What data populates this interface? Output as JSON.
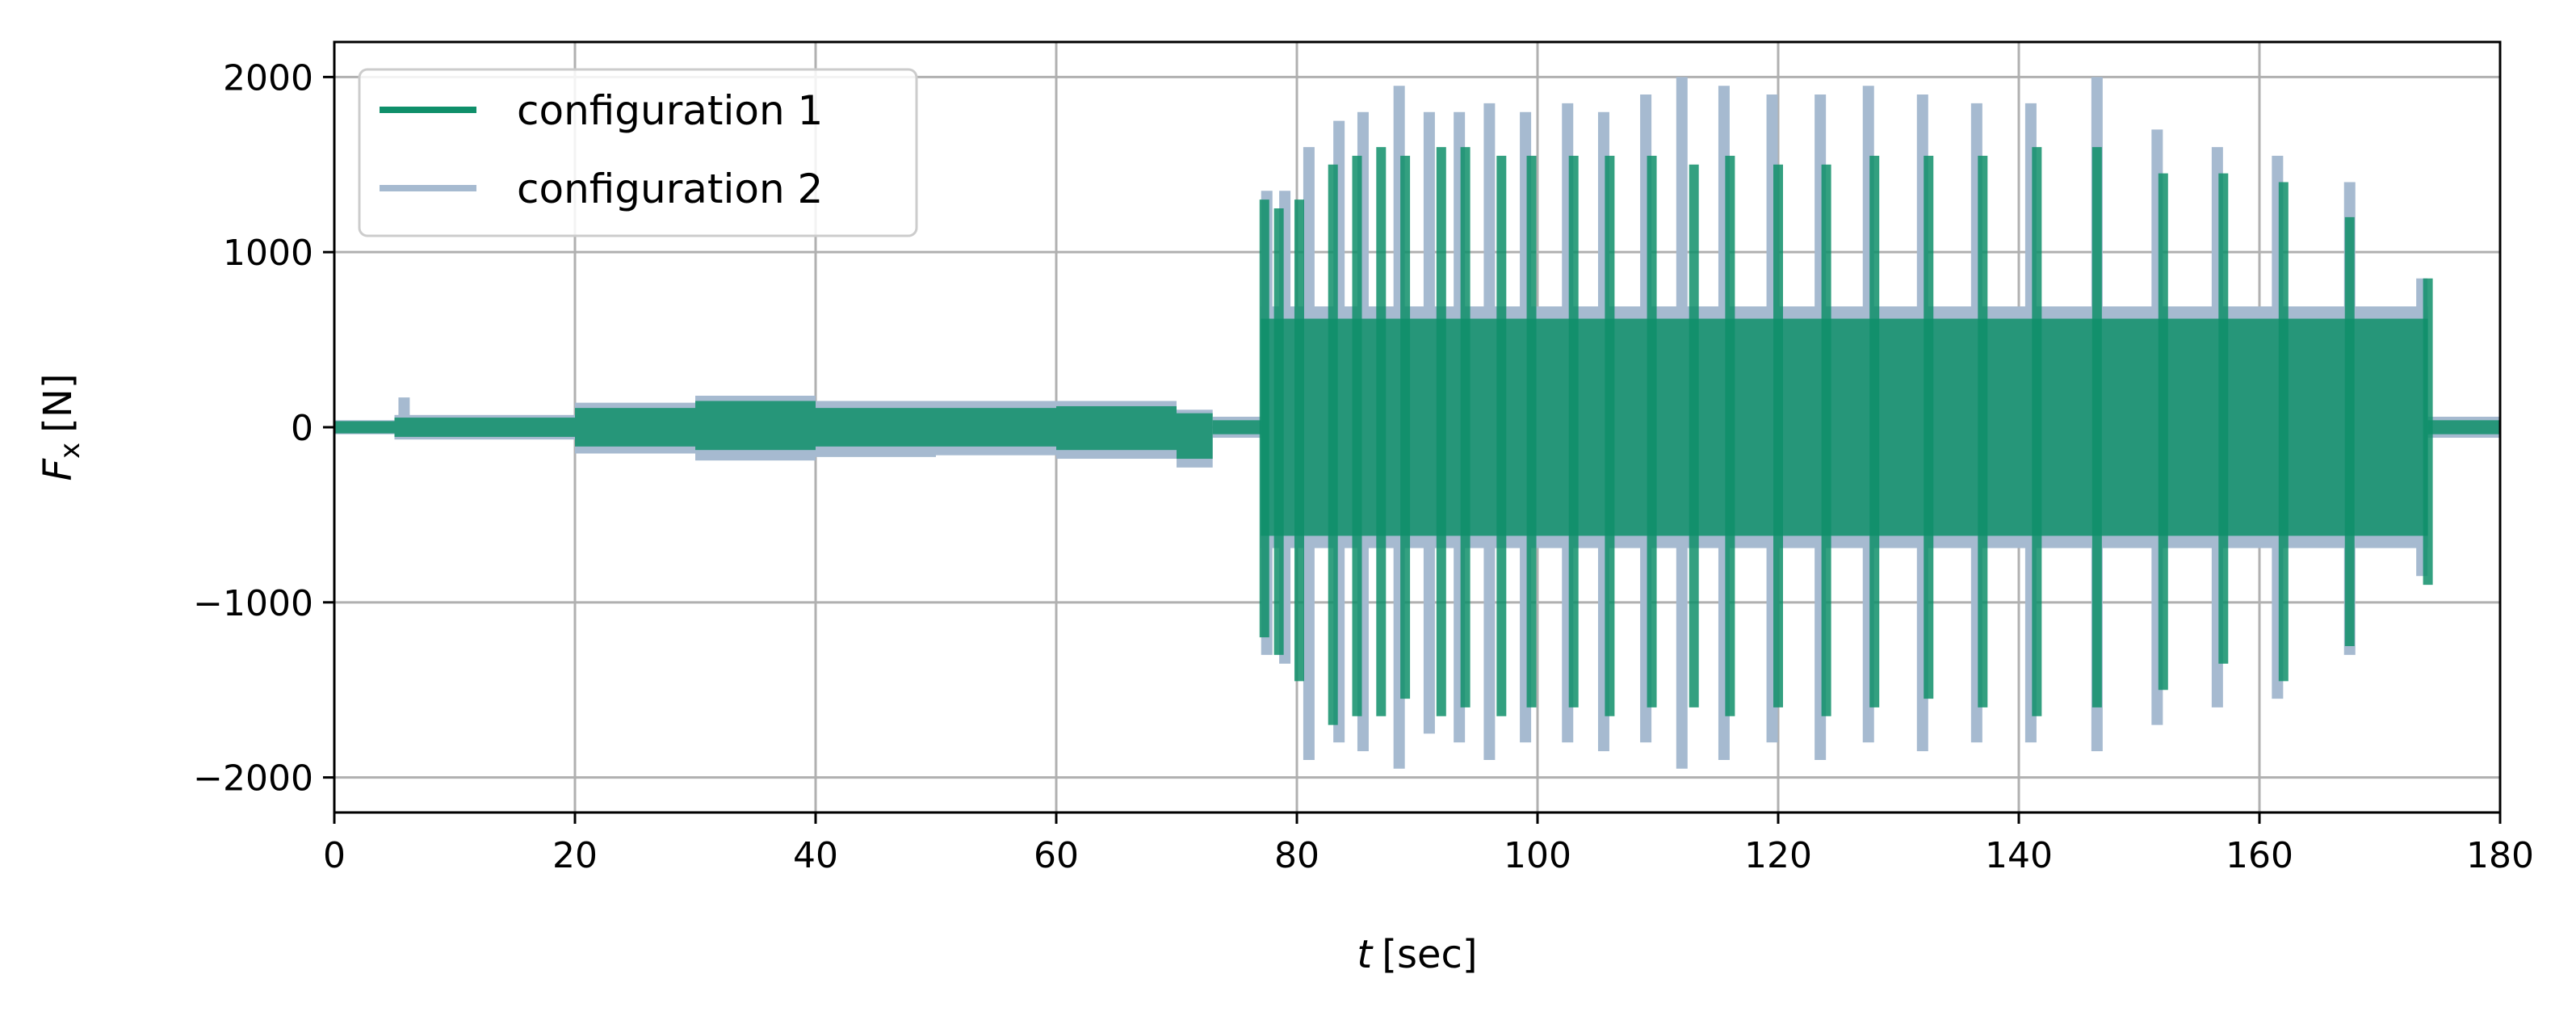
{
  "chart_data": {
    "type": "line",
    "title": "",
    "xlabel_symbol": "t",
    "xlabel_unit": "[sec]",
    "ylabel_symbol": "F",
    "ylabel_subscript": "x",
    "ylabel_unit": "[N]",
    "xlim": [
      0,
      180
    ],
    "ylim": [
      -2200,
      2200
    ],
    "x_ticks": [
      0,
      20,
      40,
      60,
      80,
      100,
      120,
      140,
      160,
      180
    ],
    "x_tick_labels": [
      "0",
      "20",
      "40",
      "60",
      "80",
      "100",
      "120",
      "140",
      "160",
      "180"
    ],
    "y_ticks": [
      -2000,
      -1000,
      0,
      1000,
      2000
    ],
    "y_tick_labels": [
      "−2000",
      "−1000",
      "0",
      "1000",
      "2000"
    ],
    "grid": true,
    "legend_position": "top-left",
    "series": [
      {
        "name": "configuration 1",
        "color": "#0f8f6a",
        "segments": [
          {
            "x0": 0,
            "x1": 5,
            "lo": -35,
            "hi": 35
          },
          {
            "x0": 5,
            "x1": 20,
            "lo": -55,
            "hi": 55
          },
          {
            "x0": 20,
            "x1": 30,
            "lo": -110,
            "hi": 110
          },
          {
            "x0": 30,
            "x1": 40,
            "lo": -130,
            "hi": 150
          },
          {
            "x0": 40,
            "x1": 50,
            "lo": -110,
            "hi": 110
          },
          {
            "x0": 50,
            "x1": 60,
            "lo": -110,
            "hi": 110
          },
          {
            "x0": 60,
            "x1": 70,
            "lo": -130,
            "hi": 120
          },
          {
            "x0": 70,
            "x1": 73,
            "lo": -180,
            "hi": 80
          },
          {
            "x0": 73,
            "x1": 77,
            "lo": -40,
            "hi": 40
          },
          {
            "x0": 77,
            "x1": 174,
            "lo": -620,
            "hi": 620
          },
          {
            "x0": 174,
            "x1": 180,
            "lo": -40,
            "hi": 40
          }
        ],
        "spike_bursts": [
          {
            "x": 77.3,
            "hi": 1300,
            "lo": -1200
          },
          {
            "x": 78.5,
            "hi": 1250,
            "lo": -1300
          },
          {
            "x": 80.2,
            "hi": 1300,
            "lo": -1450
          },
          {
            "x": 83.0,
            "hi": 1500,
            "lo": -1700
          },
          {
            "x": 85.0,
            "hi": 1550,
            "lo": -1650
          },
          {
            "x": 87.0,
            "hi": 1600,
            "lo": -1650
          },
          {
            "x": 89.0,
            "hi": 1550,
            "lo": -1550
          },
          {
            "x": 92.0,
            "hi": 1600,
            "lo": -1650
          },
          {
            "x": 94.0,
            "hi": 1600,
            "lo": -1600
          },
          {
            "x": 97.0,
            "hi": 1550,
            "lo": -1650
          },
          {
            "x": 99.5,
            "hi": 1550,
            "lo": -1600
          },
          {
            "x": 103.0,
            "hi": 1550,
            "lo": -1600
          },
          {
            "x": 106.0,
            "hi": 1550,
            "lo": -1650
          },
          {
            "x": 109.5,
            "hi": 1550,
            "lo": -1600
          },
          {
            "x": 113.0,
            "hi": 1500,
            "lo": -1600
          },
          {
            "x": 116.0,
            "hi": 1550,
            "lo": -1650
          },
          {
            "x": 120.0,
            "hi": 1500,
            "lo": -1600
          },
          {
            "x": 124.0,
            "hi": 1500,
            "lo": -1650
          },
          {
            "x": 128.0,
            "hi": 1550,
            "lo": -1600
          },
          {
            "x": 132.5,
            "hi": 1550,
            "lo": -1550
          },
          {
            "x": 137.0,
            "hi": 1550,
            "lo": -1600
          },
          {
            "x": 141.5,
            "hi": 1600,
            "lo": -1650
          },
          {
            "x": 146.5,
            "hi": 1600,
            "lo": -1600
          },
          {
            "x": 152.0,
            "hi": 1450,
            "lo": -1500
          },
          {
            "x": 157.0,
            "hi": 1450,
            "lo": -1350
          },
          {
            "x": 162.0,
            "hi": 1400,
            "lo": -1450
          },
          {
            "x": 167.5,
            "hi": 1200,
            "lo": -1250
          },
          {
            "x": 174.0,
            "hi": 850,
            "lo": -900
          }
        ]
      },
      {
        "name": "configuration 2",
        "color": "#a6bad0",
        "segments": [
          {
            "x0": 0,
            "x1": 5,
            "lo": -40,
            "hi": 40
          },
          {
            "x0": 5,
            "x1": 20,
            "lo": -70,
            "hi": 70
          },
          {
            "x0": 20,
            "x1": 30,
            "lo": -150,
            "hi": 140
          },
          {
            "x0": 30,
            "x1": 40,
            "lo": -190,
            "hi": 180
          },
          {
            "x0": 40,
            "x1": 50,
            "lo": -170,
            "hi": 150
          },
          {
            "x0": 50,
            "x1": 60,
            "lo": -160,
            "hi": 150
          },
          {
            "x0": 60,
            "x1": 70,
            "lo": -180,
            "hi": 150
          },
          {
            "x0": 70,
            "x1": 73,
            "lo": -230,
            "hi": 100
          },
          {
            "x0": 73,
            "x1": 77,
            "lo": -60,
            "hi": 60
          },
          {
            "x0": 77,
            "x1": 174,
            "lo": -690,
            "hi": 690
          },
          {
            "x0": 174,
            "x1": 180,
            "lo": -60,
            "hi": 60
          }
        ],
        "spike_bursts": [
          {
            "x": 5.8,
            "hi": 170,
            "lo": -60
          },
          {
            "x": 77.5,
            "hi": 1350,
            "lo": -1300
          },
          {
            "x": 79.0,
            "hi": 1350,
            "lo": -1350
          },
          {
            "x": 81.0,
            "hi": 1600,
            "lo": -1900
          },
          {
            "x": 83.5,
            "hi": 1750,
            "lo": -1800
          },
          {
            "x": 85.5,
            "hi": 1800,
            "lo": -1850
          },
          {
            "x": 88.5,
            "hi": 1950,
            "lo": -1950
          },
          {
            "x": 91.0,
            "hi": 1800,
            "lo": -1750
          },
          {
            "x": 93.5,
            "hi": 1800,
            "lo": -1800
          },
          {
            "x": 96.0,
            "hi": 1850,
            "lo": -1900
          },
          {
            "x": 99.0,
            "hi": 1800,
            "lo": -1800
          },
          {
            "x": 102.5,
            "hi": 1850,
            "lo": -1800
          },
          {
            "x": 105.5,
            "hi": 1800,
            "lo": -1850
          },
          {
            "x": 109.0,
            "hi": 1900,
            "lo": -1800
          },
          {
            "x": 112.0,
            "hi": 2000,
            "lo": -1950
          },
          {
            "x": 115.5,
            "hi": 1950,
            "lo": -1900
          },
          {
            "x": 119.5,
            "hi": 1900,
            "lo": -1800
          },
          {
            "x": 123.5,
            "hi": 1900,
            "lo": -1900
          },
          {
            "x": 127.5,
            "hi": 1950,
            "lo": -1800
          },
          {
            "x": 132.0,
            "hi": 1900,
            "lo": -1850
          },
          {
            "x": 136.5,
            "hi": 1850,
            "lo": -1800
          },
          {
            "x": 141.0,
            "hi": 1850,
            "lo": -1800
          },
          {
            "x": 146.5,
            "hi": 2000,
            "lo": -1850
          },
          {
            "x": 151.5,
            "hi": 1700,
            "lo": -1700
          },
          {
            "x": 156.5,
            "hi": 1600,
            "lo": -1600
          },
          {
            "x": 161.5,
            "hi": 1550,
            "lo": -1550
          },
          {
            "x": 167.5,
            "hi": 1400,
            "lo": -1300
          },
          {
            "x": 173.5,
            "hi": 850,
            "lo": -850
          }
        ]
      }
    ]
  }
}
